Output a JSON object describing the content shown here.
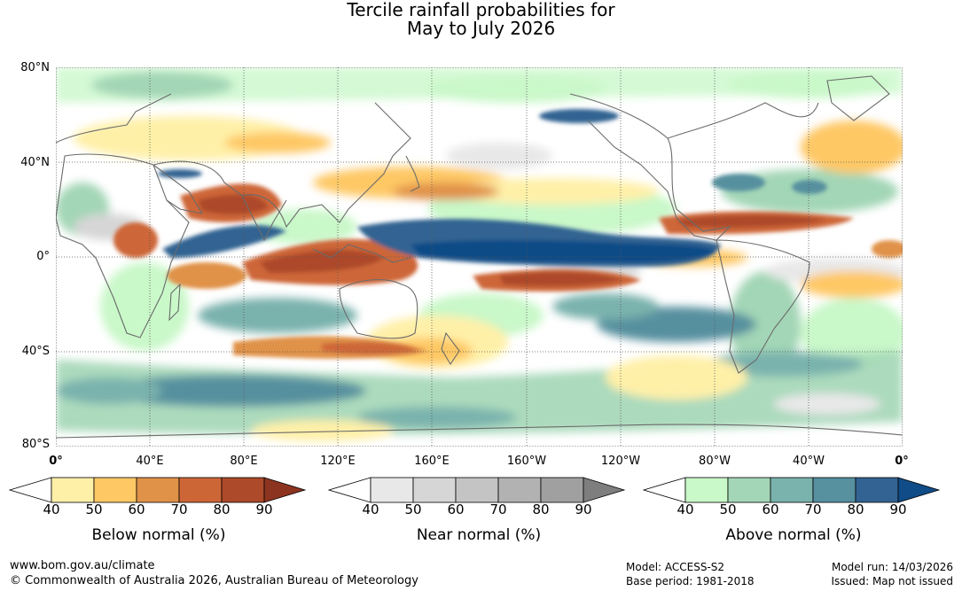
{
  "title": {
    "line1": "Tercile rainfall probabilities for",
    "line2": "May to July 2026"
  },
  "axes": {
    "lat_labels": [
      "80°N",
      "40°N",
      "0°",
      "40°S",
      "80°S"
    ],
    "lon_labels": [
      "0°",
      "40°E",
      "80°E",
      "120°E",
      "160°E",
      "160°W",
      "120°W",
      "80°W",
      "40°W",
      "0°"
    ]
  },
  "legends": [
    {
      "title": "Below normal (%)",
      "ticks": [
        "40",
        "50",
        "60",
        "70",
        "80",
        "90"
      ],
      "colors": [
        "#ffffff",
        "#fff0a8",
        "#fec865",
        "#e09248",
        "#cd6637",
        "#ad4a2a",
        "#8c3420"
      ]
    },
    {
      "title": "Near normal (%)",
      "ticks": [
        "40",
        "50",
        "60",
        "70",
        "80",
        "90"
      ],
      "colors": [
        "#ffffff",
        "#e8e8e8",
        "#d6d6d6",
        "#c4c4c4",
        "#b2b2b2",
        "#a0a0a0",
        "#7e7e7e"
      ]
    },
    {
      "title": "Above normal (%)",
      "ticks": [
        "40",
        "50",
        "60",
        "70",
        "80",
        "90"
      ],
      "colors": [
        "#ffffff",
        "#c9f8c9",
        "#a3d6b6",
        "#7ab2ad",
        "#57909f",
        "#336392",
        "#104c87"
      ]
    }
  ],
  "footer": {
    "website": "www.bom.gov.au/climate",
    "copyright": "© Commonwealth of Australia 2026, Australian Bureau of Meteorology",
    "model": "Model: ACCESS-S2",
    "base_period": "Base period: 1981-2018",
    "model_run": "Model run: 14/03/2026",
    "issued": "Issued: Map not issued"
  }
}
